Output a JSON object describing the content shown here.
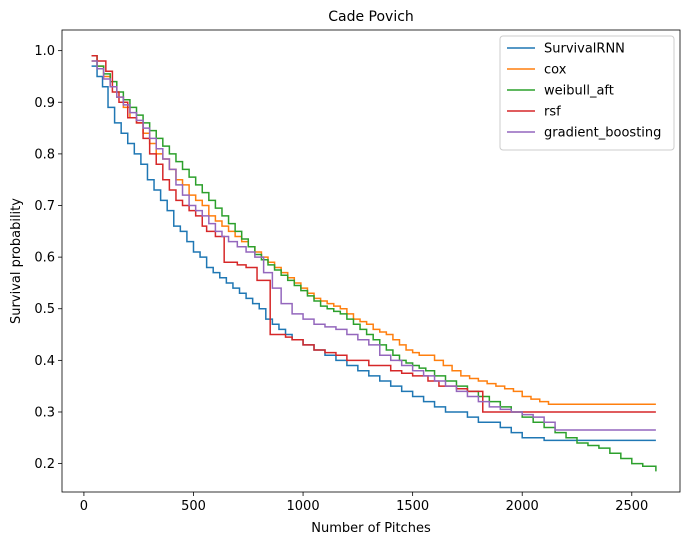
{
  "chart_data": {
    "type": "line",
    "step": true,
    "title": "Cade Povich",
    "xlabel": "Number of Pitches",
    "ylabel": "Survival probability",
    "xlim": [
      -100,
      2720
    ],
    "ylim": [
      0.145,
      1.04
    ],
    "xticks": [
      0,
      500,
      1000,
      1500,
      2000,
      2500
    ],
    "yticks": [
      0.2,
      0.3,
      0.4,
      0.5,
      0.6,
      0.7,
      0.8,
      0.9,
      1.0
    ],
    "ytick_labels": [
      "0.2",
      "0.3",
      "0.4",
      "0.5",
      "0.6",
      "0.7",
      "0.8",
      "0.9",
      "1.0"
    ],
    "grid": false,
    "legend_position": "top-right",
    "series": [
      {
        "name": "SurvivalRNN",
        "color": "#1f77b4",
        "x": [
          35,
          60,
          85,
          110,
          140,
          170,
          200,
          230,
          260,
          290,
          320,
          350,
          380,
          410,
          440,
          470,
          500,
          530,
          560,
          590,
          620,
          650,
          680,
          710,
          740,
          770,
          800,
          830,
          860,
          890,
          920,
          950,
          1000,
          1050,
          1100,
          1150,
          1200,
          1250,
          1300,
          1350,
          1400,
          1450,
          1500,
          1550,
          1600,
          1650,
          1700,
          1750,
          1800,
          1850,
          1900,
          1950,
          2000,
          2050,
          2100,
          2150,
          2200,
          2250,
          2300,
          2400,
          2500,
          2610
        ],
        "y": [
          0.97,
          0.95,
          0.93,
          0.89,
          0.86,
          0.84,
          0.82,
          0.8,
          0.78,
          0.75,
          0.73,
          0.71,
          0.69,
          0.66,
          0.65,
          0.63,
          0.61,
          0.6,
          0.58,
          0.57,
          0.56,
          0.55,
          0.54,
          0.53,
          0.52,
          0.51,
          0.5,
          0.48,
          0.47,
          0.46,
          0.45,
          0.44,
          0.43,
          0.42,
          0.41,
          0.4,
          0.39,
          0.38,
          0.37,
          0.36,
          0.35,
          0.34,
          0.33,
          0.32,
          0.31,
          0.3,
          0.3,
          0.29,
          0.28,
          0.28,
          0.27,
          0.26,
          0.25,
          0.25,
          0.245,
          0.245,
          0.245,
          0.245,
          0.245,
          0.245,
          0.245,
          0.245
        ]
      },
      {
        "name": "cox",
        "color": "#ff7f0e",
        "x": [
          35,
          60,
          90,
          120,
          150,
          180,
          210,
          240,
          270,
          300,
          330,
          360,
          390,
          420,
          450,
          480,
          510,
          540,
          570,
          600,
          630,
          660,
          690,
          720,
          750,
          780,
          810,
          840,
          870,
          900,
          930,
          960,
          990,
          1020,
          1050,
          1080,
          1110,
          1140,
          1170,
          1200,
          1230,
          1260,
          1290,
          1320,
          1350,
          1380,
          1410,
          1440,
          1470,
          1500,
          1530,
          1560,
          1600,
          1640,
          1680,
          1720,
          1760,
          1800,
          1840,
          1880,
          1920,
          1960,
          2000,
          2040,
          2080,
          2120,
          2200,
          2300,
          2400,
          2500,
          2610
        ],
        "y": [
          0.98,
          0.97,
          0.95,
          0.93,
          0.91,
          0.89,
          0.87,
          0.86,
          0.84,
          0.82,
          0.8,
          0.79,
          0.77,
          0.75,
          0.74,
          0.72,
          0.71,
          0.7,
          0.68,
          0.67,
          0.66,
          0.65,
          0.64,
          0.63,
          0.62,
          0.61,
          0.6,
          0.59,
          0.58,
          0.57,
          0.56,
          0.55,
          0.54,
          0.53,
          0.52,
          0.515,
          0.51,
          0.505,
          0.5,
          0.49,
          0.48,
          0.475,
          0.47,
          0.46,
          0.455,
          0.45,
          0.44,
          0.43,
          0.42,
          0.415,
          0.41,
          0.41,
          0.4,
          0.39,
          0.38,
          0.37,
          0.365,
          0.36,
          0.355,
          0.35,
          0.345,
          0.34,
          0.33,
          0.325,
          0.32,
          0.315,
          0.315,
          0.315,
          0.315,
          0.315,
          0.315
        ]
      },
      {
        "name": "weibull_aft",
        "color": "#2ca02c",
        "x": [
          35,
          60,
          90,
          120,
          150,
          180,
          210,
          240,
          270,
          300,
          330,
          360,
          390,
          420,
          450,
          480,
          510,
          540,
          570,
          600,
          630,
          660,
          690,
          720,
          750,
          780,
          810,
          840,
          870,
          900,
          930,
          960,
          990,
          1020,
          1050,
          1080,
          1110,
          1140,
          1170,
          1200,
          1230,
          1260,
          1290,
          1320,
          1350,
          1380,
          1410,
          1440,
          1470,
          1500,
          1530,
          1560,
          1600,
          1650,
          1700,
          1750,
          1800,
          1850,
          1900,
          1950,
          2000,
          2050,
          2100,
          2150,
          2200,
          2250,
          2300,
          2350,
          2400,
          2450,
          2500,
          2550,
          2610
        ],
        "y": [
          0.99,
          0.97,
          0.955,
          0.94,
          0.92,
          0.905,
          0.89,
          0.875,
          0.86,
          0.845,
          0.83,
          0.815,
          0.8,
          0.785,
          0.77,
          0.755,
          0.74,
          0.725,
          0.71,
          0.695,
          0.68,
          0.665,
          0.65,
          0.635,
          0.62,
          0.605,
          0.595,
          0.585,
          0.575,
          0.565,
          0.555,
          0.545,
          0.535,
          0.525,
          0.515,
          0.505,
          0.5,
          0.495,
          0.49,
          0.48,
          0.47,
          0.46,
          0.45,
          0.44,
          0.43,
          0.42,
          0.41,
          0.4,
          0.395,
          0.39,
          0.385,
          0.38,
          0.37,
          0.36,
          0.35,
          0.34,
          0.33,
          0.32,
          0.31,
          0.3,
          0.29,
          0.28,
          0.27,
          0.26,
          0.25,
          0.24,
          0.235,
          0.23,
          0.22,
          0.21,
          0.2,
          0.195,
          0.185
        ]
      },
      {
        "name": "rsf",
        "color": "#d62728",
        "x": [
          35,
          60,
          100,
          130,
          160,
          200,
          240,
          270,
          300,
          330,
          360,
          390,
          420,
          450,
          480,
          510,
          540,
          560,
          600,
          640,
          700,
          740,
          790,
          850,
          920,
          950,
          1000,
          1050,
          1100,
          1150,
          1200,
          1300,
          1400,
          1450,
          1500,
          1570,
          1620,
          1700,
          1750,
          1820,
          1900,
          2000,
          2100,
          2200,
          2400,
          2610
        ],
        "y": [
          0.99,
          0.98,
          0.96,
          0.92,
          0.9,
          0.87,
          0.86,
          0.83,
          0.8,
          0.78,
          0.75,
          0.73,
          0.71,
          0.7,
          0.69,
          0.68,
          0.66,
          0.65,
          0.64,
          0.59,
          0.585,
          0.58,
          0.555,
          0.45,
          0.445,
          0.44,
          0.43,
          0.42,
          0.415,
          0.41,
          0.4,
          0.39,
          0.38,
          0.375,
          0.37,
          0.36,
          0.35,
          0.345,
          0.34,
          0.3,
          0.3,
          0.3,
          0.3,
          0.3,
          0.3,
          0.3
        ]
      },
      {
        "name": "gradient_boosting",
        "color": "#9467bd",
        "x": [
          35,
          60,
          90,
          120,
          150,
          180,
          210,
          240,
          270,
          300,
          330,
          360,
          390,
          420,
          450,
          480,
          510,
          540,
          570,
          600,
          630,
          660,
          700,
          740,
          780,
          820,
          860,
          900,
          950,
          1000,
          1050,
          1100,
          1150,
          1200,
          1250,
          1300,
          1350,
          1400,
          1450,
          1500,
          1550,
          1600,
          1650,
          1700,
          1750,
          1800,
          1850,
          1900,
          1950,
          2000,
          2050,
          2100,
          2150,
          2200,
          2300,
          2400,
          2500,
          2610
        ],
        "y": [
          0.98,
          0.965,
          0.945,
          0.93,
          0.91,
          0.895,
          0.88,
          0.865,
          0.85,
          0.83,
          0.81,
          0.79,
          0.77,
          0.74,
          0.72,
          0.7,
          0.69,
          0.68,
          0.665,
          0.65,
          0.64,
          0.63,
          0.62,
          0.61,
          0.6,
          0.57,
          0.54,
          0.51,
          0.49,
          0.48,
          0.47,
          0.465,
          0.46,
          0.45,
          0.44,
          0.43,
          0.41,
          0.4,
          0.39,
          0.38,
          0.37,
          0.36,
          0.35,
          0.34,
          0.33,
          0.32,
          0.31,
          0.305,
          0.3,
          0.295,
          0.29,
          0.28,
          0.265,
          0.265,
          0.265,
          0.265,
          0.265,
          0.265
        ]
      }
    ]
  }
}
